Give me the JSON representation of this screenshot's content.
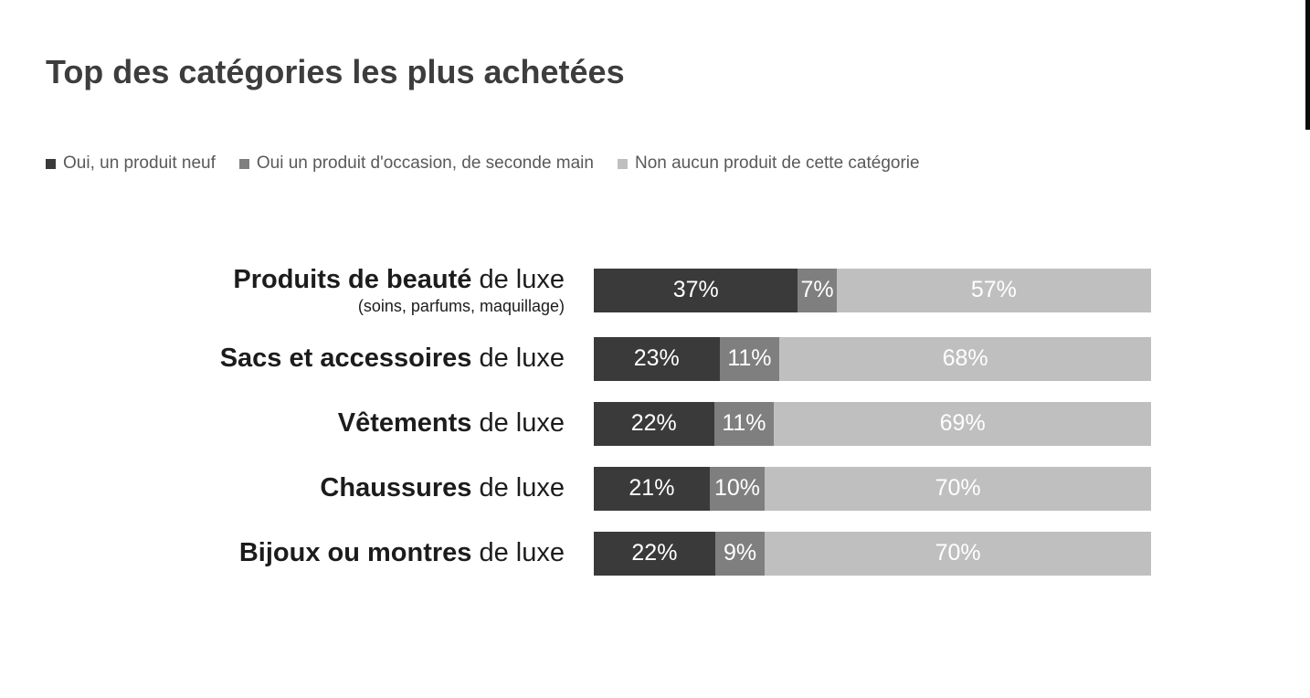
{
  "title": "Top des catégories les plus achetées",
  "legend": [
    {
      "label": "Oui, un produit neuf",
      "color": "#3a3a3a"
    },
    {
      "label": "Oui un produit d'occasion, de seconde main",
      "color": "#7f7f7f"
    },
    {
      "label": "Non aucun produit de cette catégorie",
      "color": "#bfbfbf"
    }
  ],
  "chart_data": {
    "type": "bar",
    "orientation": "horizontal",
    "stacked": true,
    "unit": "%",
    "title": "Top des catégories les plus achetées",
    "legend_position": "top",
    "value_labels": true,
    "categories": [
      {
        "bold": "Produits de beauté",
        "rest": " de luxe",
        "note": "(soins, parfums, maquillage)"
      },
      {
        "bold": "Sacs et accessoires",
        "rest": " de luxe",
        "note": ""
      },
      {
        "bold": "Vêtements",
        "rest": " de luxe",
        "note": ""
      },
      {
        "bold": "Chaussures",
        "rest": " de luxe",
        "note": ""
      },
      {
        "bold": "Bijoux ou montres",
        "rest": " de luxe",
        "note": ""
      }
    ],
    "series": [
      {
        "name": "Oui, un produit neuf",
        "color": "#3a3a3a",
        "values": [
          37,
          23,
          22,
          21,
          22
        ]
      },
      {
        "name": "Oui un produit d'occasion, de seconde main",
        "color": "#7f7f7f",
        "values": [
          7,
          11,
          11,
          10,
          9
        ]
      },
      {
        "name": "Non aucun produit de cette catégorie",
        "color": "#bfbfbf",
        "values": [
          57,
          68,
          69,
          70,
          70
        ]
      }
    ]
  }
}
